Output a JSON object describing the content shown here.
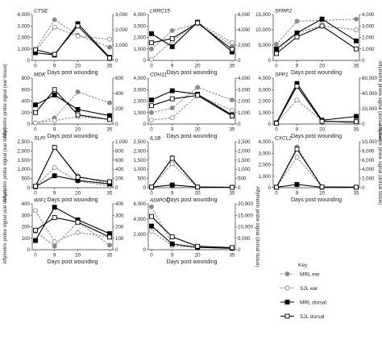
{
  "figure": {
    "ylabel_left": "Affymetrix probe signal (ear tissue)",
    "ylabel_right": "Affymetrix probe signal (dorsal tissue)",
    "xlabel": "Days post wounding",
    "key_title": "Key"
  },
  "chart_data": [
    {
      "type": "line",
      "title": "CTSE",
      "x": [
        0,
        9,
        20,
        35
      ],
      "left_ticks": [
        "0",
        "1,000",
        "2,000",
        "3,000",
        "4,000"
      ],
      "ylim_left": [
        0,
        4000
      ],
      "right_ticks": [
        "0",
        "1,000",
        "2,000",
        "3,000"
      ],
      "ylim_right": [
        0,
        3000
      ],
      "series": [
        {
          "name": "MRL ear",
          "axis": "left",
          "values": [
            950,
            3550,
            2200,
            1150
          ]
        },
        {
          "name": "SJL ear",
          "axis": "left",
          "values": [
            800,
            2900,
            2100,
            1850
          ]
        },
        {
          "name": "MRL dorsal",
          "axis": "right",
          "values": [
            500,
            350,
            2400,
            200
          ]
        },
        {
          "name": "SJL dorsal",
          "axis": "right",
          "values": [
            700,
            400,
            2250,
            150
          ]
        }
      ]
    },
    {
      "type": "line",
      "title": "LRRC15",
      "x": [
        0,
        9,
        20,
        35
      ],
      "left_ticks": [
        "0",
        "1,000",
        "2,000",
        "3,000",
        "4,000"
      ],
      "ylim_left": [
        0,
        4000
      ],
      "right_ticks": [
        "0",
        "2,000",
        "4,000",
        "6,000"
      ],
      "ylim_right": [
        0,
        6000
      ],
      "series": [
        {
          "name": "MRL ear",
          "axis": "left",
          "values": [
            1000,
            2600,
            3200,
            1300
          ]
        },
        {
          "name": "SJL ear",
          "axis": "left",
          "values": [
            100,
            1700,
            3300,
            1550
          ]
        },
        {
          "name": "MRL dorsal",
          "axis": "right",
          "values": [
            3500,
            1800,
            5000,
            1100
          ]
        },
        {
          "name": "SJL dorsal",
          "axis": "right",
          "values": [
            2300,
            2850,
            4900,
            1450
          ]
        }
      ]
    },
    {
      "type": "line",
      "title": "SFRP2",
      "x": [
        0,
        9,
        20,
        35
      ],
      "left_ticks": [
        "0",
        "5,000",
        "10,000",
        "15,000"
      ],
      "ylim_left": [
        0,
        15000
      ],
      "right_ticks": [
        "0",
        "1,000",
        "2,000",
        "3,000",
        "4,000"
      ],
      "ylim_right": [
        0,
        4000
      ],
      "series": [
        {
          "name": "MRL ear",
          "axis": "left",
          "values": [
            5300,
            12800,
            13100,
            13500
          ]
        },
        {
          "name": "SJL ear",
          "axis": "left",
          "values": [
            2900,
            9000,
            11300,
            10000
          ]
        },
        {
          "name": "MRL dorsal",
          "axis": "right",
          "values": [
            1000,
            2400,
            3600,
            1700
          ]
        },
        {
          "name": "SJL dorsal",
          "axis": "right",
          "values": [
            600,
            2050,
            3000,
            1000
          ]
        }
      ]
    },
    {
      "type": "line",
      "title": "MDK",
      "x": [
        0,
        9,
        20,
        35
      ],
      "left_ticks": [
        "0",
        "200",
        "400",
        "600",
        "800"
      ],
      "ylim_left": [
        0,
        800
      ],
      "right_ticks": [
        "0",
        "200",
        "400",
        "600"
      ],
      "ylim_right": [
        0,
        600
      ],
      "series": [
        {
          "name": "MRL ear",
          "axis": "left",
          "values": [
            20,
            110,
            560,
            370
          ]
        },
        {
          "name": "SJL ear",
          "axis": "left",
          "values": [
            20,
            60,
            130,
            80
          ]
        },
        {
          "name": "MRL dorsal",
          "axis": "right",
          "values": [
            250,
            380,
            190,
            110
          ]
        },
        {
          "name": "SJL dorsal",
          "axis": "right",
          "values": [
            150,
            450,
            120,
            60
          ]
        }
      ]
    },
    {
      "type": "line",
      "title": "CDH11",
      "x": [
        0,
        9,
        20,
        35
      ],
      "left_ticks": [
        "0",
        "1,000",
        "2,000",
        "3,000",
        "4,000"
      ],
      "ylim_left": [
        0,
        4000
      ],
      "right_ticks": [
        "0",
        "1,000",
        "2,000",
        "3,000",
        "4,000"
      ],
      "ylim_right": [
        0,
        4000
      ],
      "series": [
        {
          "name": "MRL ear",
          "axis": "left",
          "values": [
            1000,
            1400,
            3200,
            2100
          ]
        },
        {
          "name": "SJL ear",
          "axis": "left",
          "values": [
            350,
            550,
            2500,
            1200
          ]
        },
        {
          "name": "MRL dorsal",
          "axis": "right",
          "values": [
            2100,
            2900,
            2600,
            800
          ]
        },
        {
          "name": "SJL dorsal",
          "axis": "right",
          "values": [
            1600,
            2200,
            2500,
            700
          ]
        }
      ]
    },
    {
      "type": "line",
      "title": "SPP1",
      "x": [
        0,
        9,
        20,
        35
      ],
      "left_ticks": [
        "0",
        "1,000",
        "2,000",
        "3,000",
        "4,000"
      ],
      "ylim_left": [
        0,
        4000
      ],
      "right_ticks": [
        "0",
        "20,000",
        "40,000",
        "60,000"
      ],
      "ylim_right": [
        0,
        60000
      ],
      "series": [
        {
          "name": "MRL ear",
          "axis": "left",
          "values": [
            120,
            3300,
            250,
            150
          ]
        },
        {
          "name": "SJL ear",
          "axis": "left",
          "values": [
            100,
            2100,
            300,
            50
          ]
        },
        {
          "name": "MRL dorsal",
          "axis": "right",
          "values": [
            1500,
            53000,
            5000,
            10000
          ]
        },
        {
          "name": "SJL dorsal",
          "axis": "right",
          "values": [
            1000,
            49500,
            3500,
            3000
          ]
        }
      ]
    },
    {
      "type": "line",
      "title": "SLPI",
      "x": [
        0,
        9,
        20,
        35
      ],
      "left_ticks": [
        "0",
        "500",
        "1,000",
        "1,500",
        "2,000",
        "2,500"
      ],
      "ylim_left": [
        0,
        2500
      ],
      "right_ticks": [
        "0",
        "200",
        "400",
        "600",
        "800",
        "1,000"
      ],
      "ylim_right": [
        0,
        1000
      ],
      "series": [
        {
          "name": "MRL ear",
          "axis": "left",
          "values": [
            50,
            2200,
            650,
            200
          ]
        },
        {
          "name": "SJL ear",
          "axis": "left",
          "values": [
            60,
            1100,
            350,
            100
          ]
        },
        {
          "name": "MRL dorsal",
          "axis": "right",
          "values": [
            20,
            260,
            160,
            80
          ]
        },
        {
          "name": "SJL dorsal",
          "axis": "right",
          "values": [
            30,
            880,
            230,
            130
          ]
        }
      ]
    },
    {
      "type": "line",
      "title": "IL1B",
      "x": [
        0,
        9,
        20,
        35
      ],
      "left_ticks": [
        "0",
        "500",
        "1,000",
        "1,500",
        "2,000",
        "2,500"
      ],
      "ylim_left": [
        0,
        2500
      ],
      "right_ticks": [
        "0",
        "500",
        "1,000",
        "1,500",
        "2,000",
        "2,500"
      ],
      "ylim_right": [
        0,
        2500
      ],
      "series": [
        {
          "name": "MRL ear",
          "axis": "left",
          "values": [
            30,
            1650,
            30,
            30
          ]
        },
        {
          "name": "SJL ear",
          "axis": "left",
          "values": [
            30,
            1300,
            20,
            20
          ]
        },
        {
          "name": "MRL dorsal",
          "axis": "right",
          "values": [
            30,
            150,
            30,
            20
          ]
        },
        {
          "name": "SJL dorsal",
          "axis": "right",
          "values": [
            30,
            1600,
            30,
            20
          ]
        }
      ]
    },
    {
      "type": "line",
      "title": "CXCL2",
      "x": [
        0,
        9,
        20,
        35
      ],
      "left_ticks": [
        "0",
        "1,000",
        "2,000",
        "3,000",
        "4,000"
      ],
      "ylim_left": [
        0,
        4000
      ],
      "right_ticks": [
        "0",
        "2,000",
        "4,000",
        "6,000",
        "8,000",
        "10,000"
      ],
      "ylim_right": [
        0,
        10000
      ],
      "series": [
        {
          "name": "MRL ear",
          "axis": "left",
          "values": [
            50,
            3550,
            50,
            50
          ]
        },
        {
          "name": "SJL ear",
          "axis": "left",
          "values": [
            50,
            2650,
            50,
            50
          ]
        },
        {
          "name": "MRL dorsal",
          "axis": "right",
          "values": [
            100,
            700,
            100,
            100
          ]
        },
        {
          "name": "SJL dorsal",
          "axis": "right",
          "values": [
            100,
            8400,
            150,
            100
          ]
        }
      ]
    },
    {
      "type": "line",
      "title": "WIF1",
      "x": [
        0,
        9,
        20,
        35
      ],
      "left_ticks": [
        "0",
        "100",
        "200",
        "300",
        "400"
      ],
      "ylim_left": [
        0,
        400
      ],
      "right_ticks": [
        "0",
        "100",
        "200",
        "300",
        "400"
      ],
      "ylim_right": [
        0,
        400
      ],
      "series": [
        {
          "name": "MRL ear",
          "axis": "left",
          "values": [
            160,
            30,
            240,
            40
          ]
        },
        {
          "name": "SJL ear",
          "axis": "left",
          "values": [
            340,
            70,
            150,
            110
          ]
        },
        {
          "name": "MRL dorsal",
          "axis": "right",
          "values": [
            80,
            370,
            260,
            140
          ]
        },
        {
          "name": "SJL dorsal",
          "axis": "right",
          "values": [
            170,
            280,
            240,
            110
          ]
        }
      ]
    },
    {
      "type": "line",
      "title": "ADIPOQ",
      "x": [
        0,
        9,
        20,
        35
      ],
      "left_ticks": [
        "0",
        "2,000",
        "4,000",
        "6,000"
      ],
      "ylim_left": [
        0,
        6000
      ],
      "right_ticks": [
        "0",
        "5,000",
        "10,000",
        "15,000",
        "20,000"
      ],
      "ylim_right": [
        0,
        20000
      ],
      "series": [
        {
          "name": "MRL ear",
          "axis": "left",
          "values": [
            5600,
            800,
            300,
            200
          ]
        },
        {
          "name": "SJL ear",
          "axis": "left",
          "values": [
            2400,
            500,
            300,
            200
          ]
        },
        {
          "name": "MRL dorsal",
          "axis": "right",
          "values": [
            10300,
            2500,
            1000,
            600
          ]
        },
        {
          "name": "SJL dorsal",
          "axis": "right",
          "values": [
            14500,
            5600,
            1500,
            900
          ]
        }
      ]
    }
  ],
  "legend": {
    "title": "Key",
    "placement": "bottom-right",
    "items": [
      {
        "label": "MRL ear",
        "marker": "filled-circle",
        "line": "dashed",
        "color": "#8a8a8a"
      },
      {
        "label": "SJL ear",
        "marker": "open-circle",
        "line": "dashed",
        "color": "#8a8a8a"
      },
      {
        "label": "MRL dorsal",
        "marker": "filled-square",
        "line": "solid",
        "color": "#000000"
      },
      {
        "label": "SJL dorsal",
        "marker": "open-square",
        "line": "solid",
        "color": "#000000"
      }
    ]
  }
}
